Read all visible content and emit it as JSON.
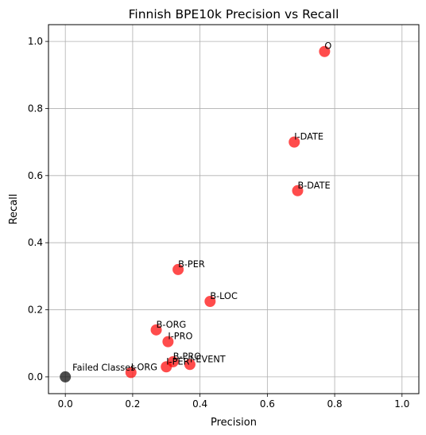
{
  "chart_data": {
    "type": "scatter",
    "title": "Finnish BPE10k Precision vs Recall",
    "xlabel": "Precision",
    "ylabel": "Recall",
    "xlim": [
      -0.05,
      1.05
    ],
    "ylim": [
      -0.05,
      1.05
    ],
    "xticks": [
      "0.0",
      "0.2",
      "0.4",
      "0.6",
      "0.8",
      "1.0"
    ],
    "yticks": [
      "0.0",
      "0.2",
      "0.4",
      "0.6",
      "0.8",
      "1.0"
    ],
    "grid": true,
    "colors": {
      "class_point": "#ff0000",
      "failed_point": "#000000",
      "grid": "#b0b0b0"
    },
    "series": [
      {
        "points": [
          {
            "label": "O",
            "x": 0.77,
            "y": 0.97
          },
          {
            "label": "I-DATE",
            "x": 0.68,
            "y": 0.7
          },
          {
            "label": "B-DATE",
            "x": 0.69,
            "y": 0.555
          },
          {
            "label": "B-PER",
            "x": 0.335,
            "y": 0.32
          },
          {
            "label": "B-LOC",
            "x": 0.43,
            "y": 0.225
          },
          {
            "label": "B-ORG",
            "x": 0.27,
            "y": 0.14
          },
          {
            "label": "I-PRO",
            "x": 0.305,
            "y": 0.105
          },
          {
            "label": "B-PRO",
            "x": 0.32,
            "y": 0.045
          },
          {
            "label": "I-EVENT",
            "x": 0.37,
            "y": 0.037
          },
          {
            "label": "I-PER",
            "x": 0.3,
            "y": 0.03
          },
          {
            "label": "I-ORG",
            "x": 0.195,
            "y": 0.013
          }
        ]
      },
      {
        "points": [
          {
            "label": "Failed Classes",
            "x": 0.0,
            "y": 0.0
          }
        ]
      }
    ]
  }
}
